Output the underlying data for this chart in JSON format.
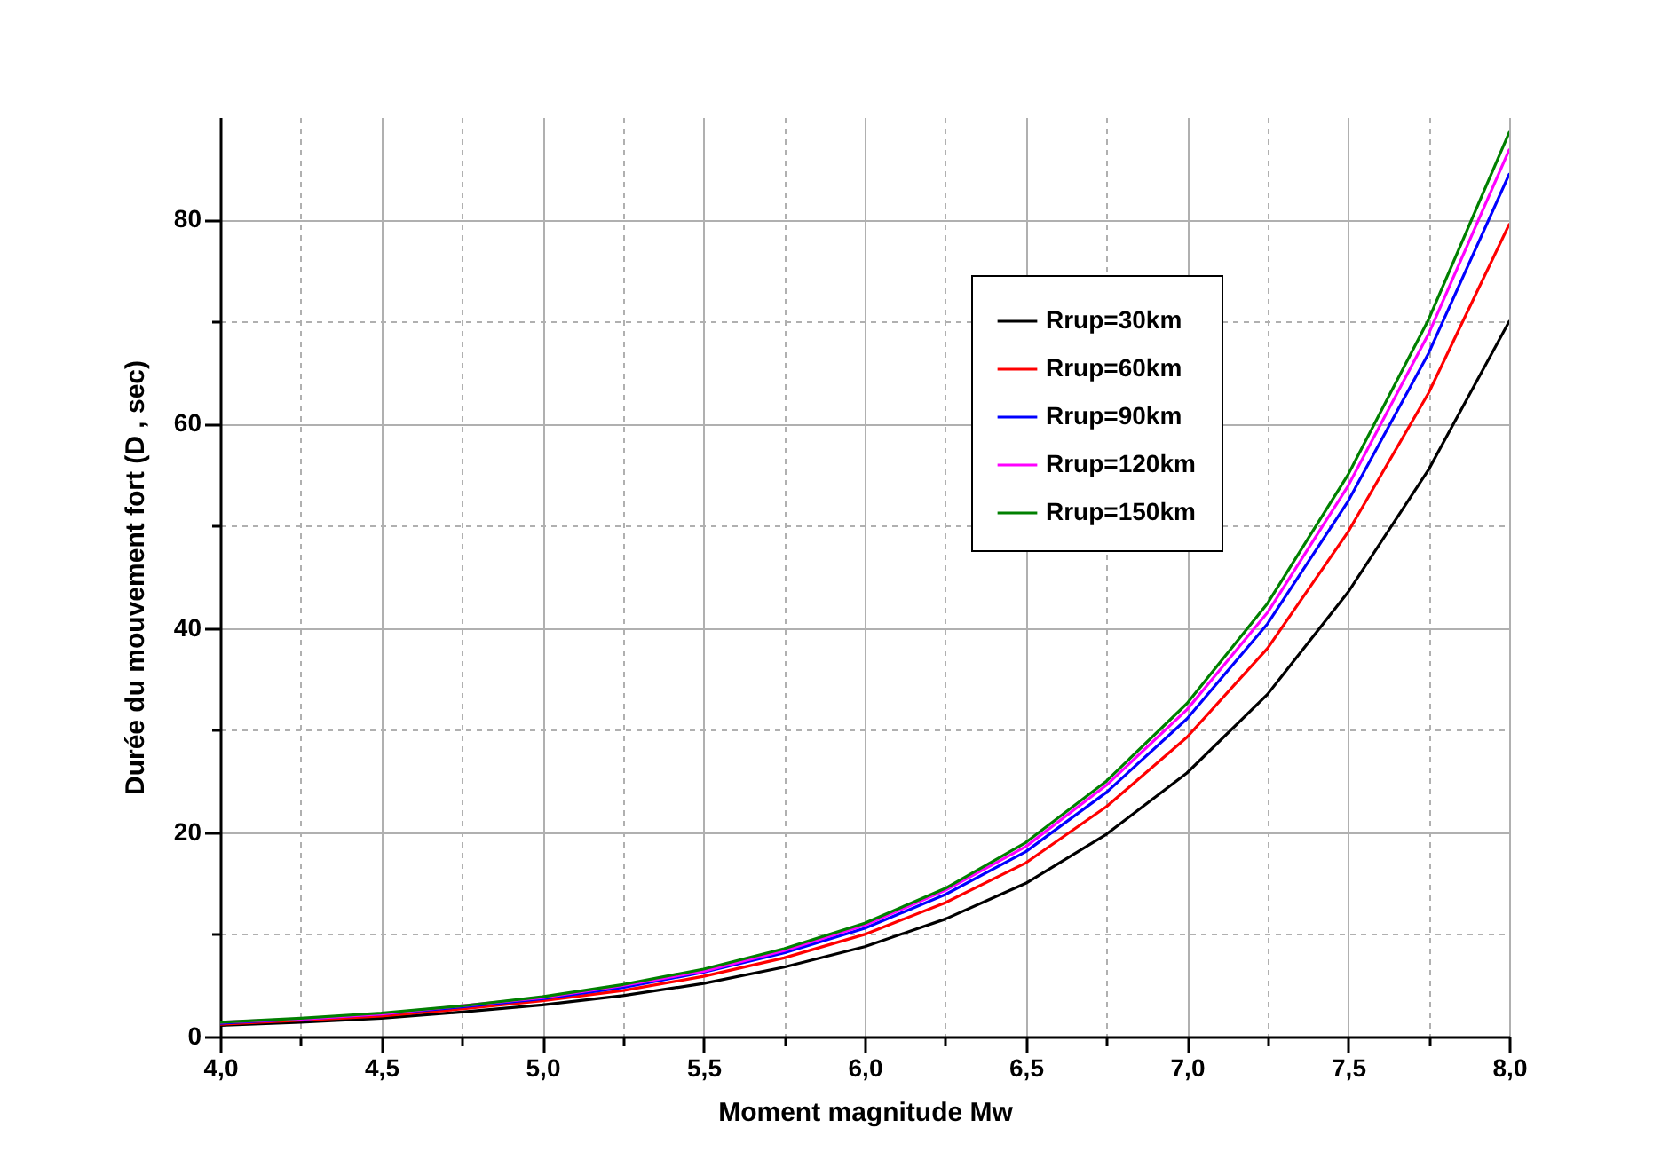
{
  "chart_data": {
    "type": "line",
    "xlabel": "Moment magnitude Mw",
    "ylabel": "Durée du mouvement fort (D , sec)",
    "x": [
      4.0,
      4.25,
      4.5,
      4.75,
      5.0,
      5.25,
      5.5,
      5.75,
      6.0,
      6.25,
      6.5,
      6.75,
      7.0,
      7.25,
      7.5,
      7.75,
      8.0
    ],
    "series": [
      {
        "name": "Rrup=30km",
        "color": "#000000",
        "values": [
          1.1,
          1.4,
          1.8,
          2.4,
          3.1,
          4.0,
          5.2,
          6.8,
          8.8,
          11.5,
          15.0,
          19.8,
          25.8,
          33.5,
          43.5,
          55.5,
          70.0
        ]
      },
      {
        "name": "Rrup=60km",
        "color": "#ff0000",
        "values": [
          1.2,
          1.6,
          2.0,
          2.7,
          3.5,
          4.5,
          5.9,
          7.7,
          10.0,
          13.1,
          17.0,
          22.5,
          29.3,
          38.0,
          49.4,
          63.0,
          79.5
        ]
      },
      {
        "name": "Rrup=90km",
        "color": "#0000ff",
        "values": [
          1.3,
          1.7,
          2.2,
          2.9,
          3.7,
          4.8,
          6.3,
          8.2,
          10.6,
          13.9,
          18.1,
          23.9,
          31.1,
          40.4,
          52.4,
          66.9,
          84.4
        ]
      },
      {
        "name": "Rrup=120km",
        "color": "#ff00ff",
        "values": [
          1.4,
          1.7,
          2.2,
          3.0,
          3.8,
          5.0,
          6.4,
          8.4,
          10.9,
          14.3,
          18.6,
          24.6,
          32.0,
          41.5,
          53.9,
          68.8,
          86.8
        ]
      },
      {
        "name": "Rrup=150km",
        "color": "#008000",
        "values": [
          1.4,
          1.8,
          2.3,
          3.0,
          3.9,
          5.1,
          6.6,
          8.6,
          11.1,
          14.5,
          19.0,
          25.0,
          32.6,
          42.4,
          55.0,
          70.2,
          88.5
        ]
      }
    ],
    "xlim": [
      4.0,
      8.0
    ],
    "xticks": [
      {
        "value": 4.0,
        "label": "4,0"
      },
      {
        "value": 4.25,
        "label": null
      },
      {
        "value": 4.5,
        "label": "4,5"
      },
      {
        "value": 4.75,
        "label": null
      },
      {
        "value": 5.0,
        "label": "5,0"
      },
      {
        "value": 5.25,
        "label": null
      },
      {
        "value": 5.5,
        "label": "5,5"
      },
      {
        "value": 5.75,
        "label": null
      },
      {
        "value": 6.0,
        "label": "6,0"
      },
      {
        "value": 6.25,
        "label": null
      },
      {
        "value": 6.5,
        "label": "6,5"
      },
      {
        "value": 6.75,
        "label": null
      },
      {
        "value": 7.0,
        "label": "7,0"
      },
      {
        "value": 7.25,
        "label": null
      },
      {
        "value": 7.5,
        "label": "7,5"
      },
      {
        "value": 7.75,
        "label": null
      },
      {
        "value": 8.0,
        "label": "8,0"
      }
    ],
    "ylim": [
      0,
      90
    ],
    "yticks": [
      0,
      {
        "value": 10,
        "label": null
      },
      20,
      {
        "value": 30,
        "label": null
      },
      40,
      {
        "value": 50,
        "label": null
      },
      60,
      {
        "value": 70,
        "label": null
      },
      80
    ],
    "grid": true,
    "legend": "top right",
    "line_style": "solid",
    "marker": "none"
  }
}
